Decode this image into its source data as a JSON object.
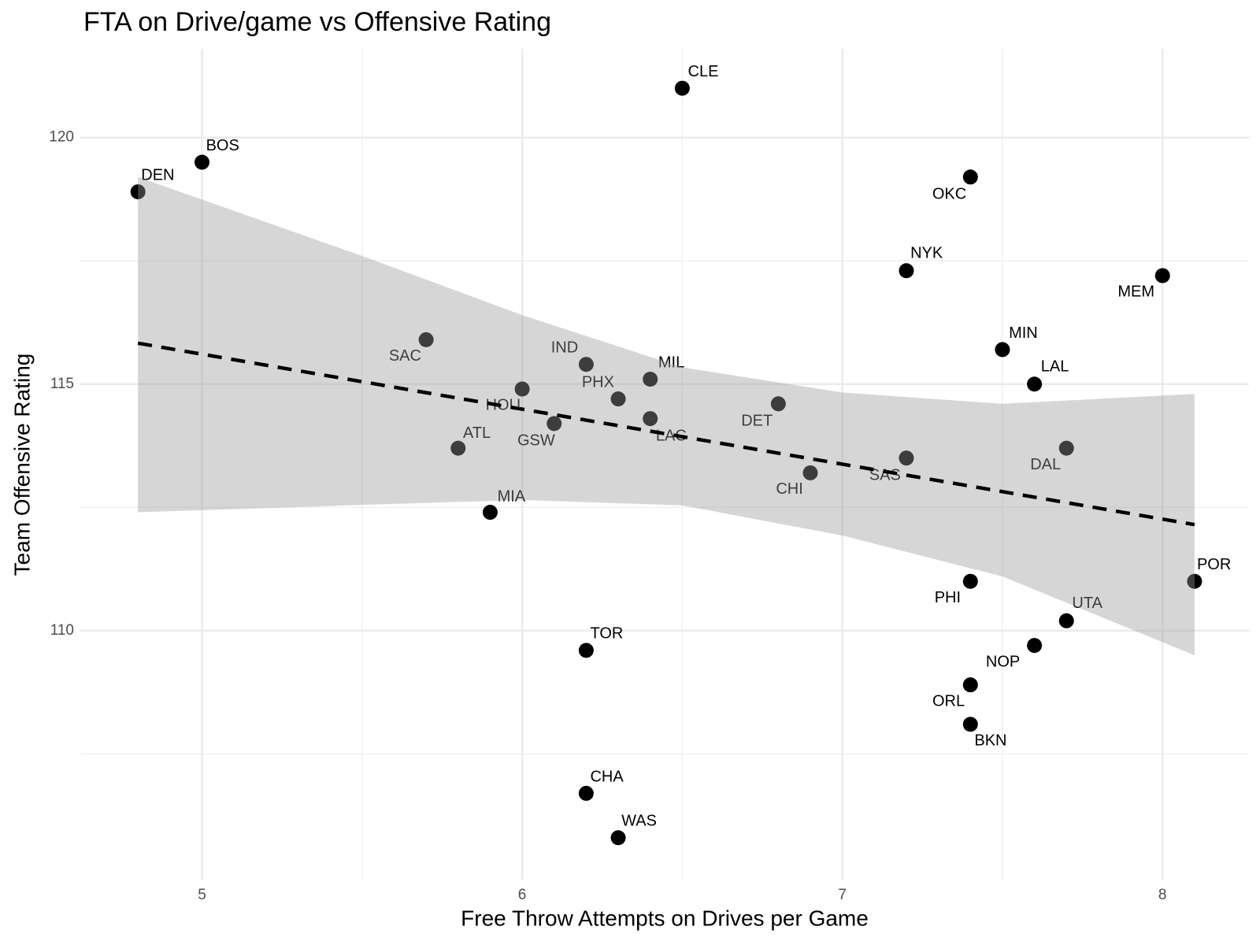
{
  "chart_data": {
    "type": "scatter",
    "title": "FTA on Drive/game vs Offensive Rating",
    "x_label": "Free Throw Attempts on Drives per Game",
    "y_label": "Team Offensive Rating",
    "labels": [
      "CLE",
      "BOS",
      "DEN",
      "OKC",
      "NYK",
      "MEM",
      "SAC",
      "MIN",
      "IND",
      "MIL",
      "LAL",
      "HOU",
      "PHX",
      "DET",
      "GSW",
      "LAC",
      "ATL",
      "DAL",
      "SAS",
      "CHI",
      "MIA",
      "PHI",
      "POR",
      "UTA",
      "NOP",
      "ORL",
      "BKN",
      "TOR",
      "CHA",
      "WAS"
    ],
    "x": [
      6.5,
      5.0,
      4.8,
      7.4,
      7.2,
      8.0,
      5.7,
      7.5,
      6.2,
      6.4,
      7.6,
      6.0,
      6.3,
      6.8,
      6.1,
      6.4,
      5.8,
      7.7,
      7.2,
      6.9,
      5.9,
      7.4,
      8.1,
      7.7,
      7.6,
      7.4,
      7.4,
      6.2,
      6.2,
      6.3
    ],
    "y": [
      121.0,
      119.5,
      118.9,
      119.2,
      117.3,
      117.2,
      115.9,
      115.7,
      115.4,
      115.1,
      115.0,
      114.9,
      114.7,
      114.6,
      114.2,
      114.3,
      113.7,
      113.7,
      113.5,
      113.2,
      112.4,
      111.0,
      111.0,
      110.2,
      109.7,
      108.9,
      108.1,
      109.6,
      106.7,
      105.8
    ],
    "point_color": "#000000",
    "trend": {
      "x": [
        4.8,
        8.1
      ],
      "y": [
        115.83,
        112.15
      ],
      "color": "#000000"
    },
    "band": {
      "x": [
        4.8,
        5.5,
        6.0,
        6.5,
        7.0,
        7.5,
        8.1
      ],
      "upper": [
        119.2,
        117.6,
        116.4,
        115.34,
        114.83,
        114.6,
        114.8
      ],
      "lower": [
        112.4,
        112.55,
        112.65,
        112.54,
        111.93,
        111.1,
        109.5
      ],
      "color": "#999999"
    },
    "xlim": [
      4.62,
      8.27
    ],
    "ylim": [
      104.95,
      121.8
    ],
    "xticks": [
      5,
      6,
      7,
      8
    ],
    "yticks": [
      110,
      115,
      120
    ],
    "x_minor_grid": [
      5.5,
      6.5,
      7.5
    ],
    "y_minor_grid": [
      107.5,
      112.5,
      117.5
    ],
    "grid": true
  }
}
